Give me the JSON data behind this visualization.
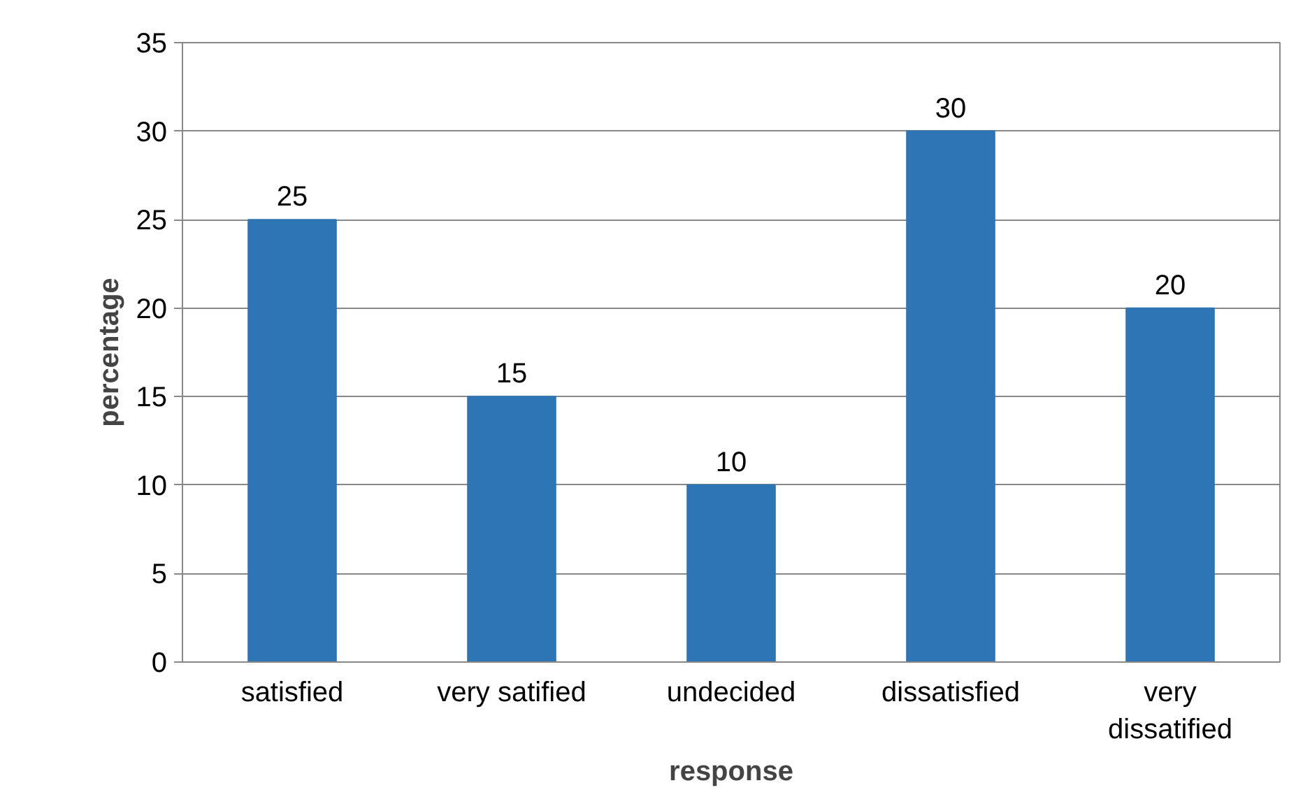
{
  "chart_data": {
    "type": "bar",
    "xlabel": "response",
    "ylabel": "percentage",
    "categories": [
      "satisfied",
      "very satified",
      "undecided",
      "dissatisfied",
      "very dissatified"
    ],
    "values": [
      25,
      15,
      10,
      30,
      20
    ],
    "color": "#2e75b6",
    "ylim": [
      0,
      35
    ],
    "yticks": [
      0,
      5,
      10,
      15,
      20,
      25,
      30,
      35
    ],
    "grid": "y",
    "data_labels": true
  }
}
